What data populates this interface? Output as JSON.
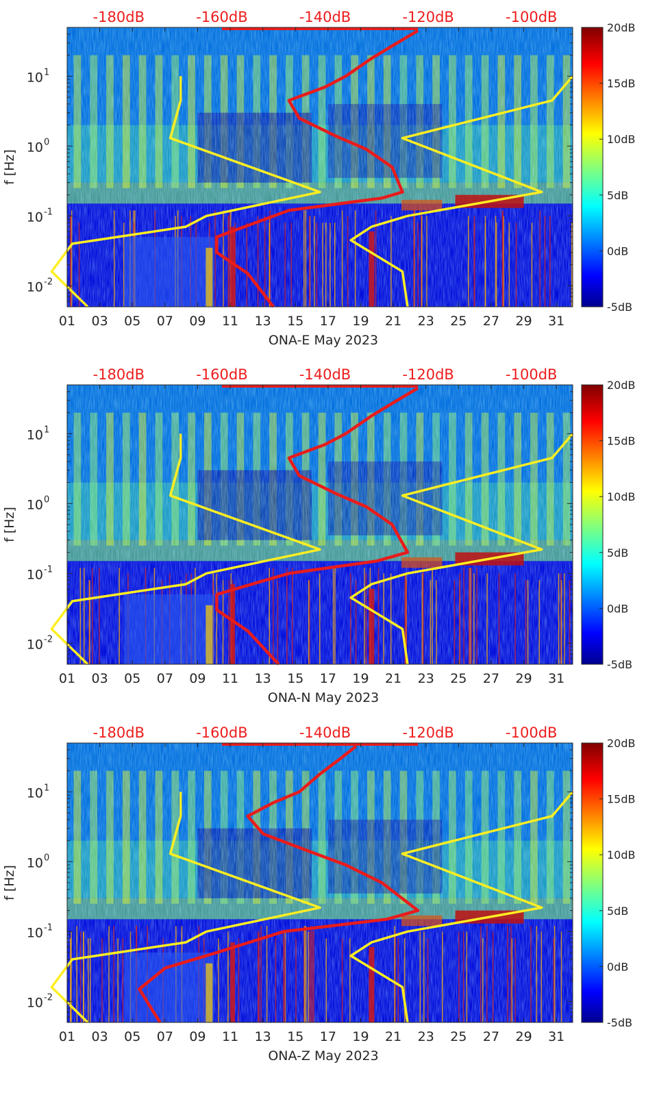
{
  "colors": {
    "background_colormap": "jet",
    "noise_model": "#ffee22",
    "median_psd": "#e81c1c",
    "top_scale_text": "#ee1c1c"
  },
  "top_scale_labels": [
    "-180dB",
    "-160dB",
    "-140dB",
    "-120dB",
    "-100dB"
  ],
  "colorbar_labels": [
    "20dB",
    "15dB",
    "10dB",
    "5dB",
    "0dB",
    "-5dB"
  ],
  "chart_data": [
    {
      "type": "heatmap",
      "title": "",
      "xlabel": "ONA-E May 2023",
      "ylabel": "f [Hz]",
      "x_tick_labels": [
        "01",
        "03",
        "05",
        "07",
        "09",
        "11",
        "13",
        "15",
        "17",
        "19",
        "21",
        "23",
        "25",
        "27",
        "29",
        "31"
      ],
      "y_tick_labels": [
        "10",
        "10",
        "10",
        "10"
      ],
      "y_tick_exponents": [
        "1",
        "0",
        "-1",
        "-2"
      ],
      "y_scale": "log",
      "ylim": [
        0.005,
        50
      ],
      "xlim": [
        1,
        32
      ],
      "colorbar": {
        "min": -5,
        "max": 20,
        "unit": "dB"
      },
      "top_axis": {
        "labels": [
          "-180dB",
          "-160dB",
          "-140dB",
          "-120dB",
          "-100dB"
        ],
        "range": [
          -190,
          -92
        ]
      },
      "series": [
        {
          "color": "#ffee22",
          "points": [
            [
              -168,
              10
            ],
            [
              -168,
              4.5
            ],
            [
              -170,
              1.3
            ],
            [
              -141,
              0.22
            ],
            [
              -163,
              0.1
            ],
            [
              -167,
              0.07
            ],
            [
              -189,
              0.04
            ],
            [
              -193,
              0.016
            ],
            [
              -186,
              0.005
            ]
          ]
        },
        {
          "color": "#ffee22",
          "points": [
            [
              -92,
              10
            ],
            [
              -96,
              4.5
            ],
            [
              -125,
              1.3
            ],
            [
              -98,
              0.22
            ],
            [
              -124,
              0.1
            ],
            [
              -131,
              0.07
            ],
            [
              -135,
              0.045
            ],
            [
              -125,
              0.016
            ],
            [
              -124,
              0.005
            ]
          ]
        },
        {
          "color": "#e81c1c",
          "points": [
            [
              -122,
              45
            ],
            [
              -126,
              30
            ],
            [
              -131,
              18
            ],
            [
              -136,
              10
            ],
            [
              -140,
              7
            ],
            [
              -147,
              4.5
            ],
            [
              -145,
              2.5
            ],
            [
              -138,
              1.4
            ],
            [
              -132,
              0.9
            ],
            [
              -127,
              0.5
            ],
            [
              -125,
              0.22
            ],
            [
              -129,
              0.18
            ],
            [
              -147,
              0.12
            ],
            [
              -161,
              0.05
            ],
            [
              -161,
              0.03
            ],
            [
              -155,
              0.015
            ],
            [
              -150,
              0.005
            ]
          ]
        }
      ]
    },
    {
      "type": "heatmap",
      "title": "",
      "xlabel": "ONA-N May 2023",
      "ylabel": "f [Hz]",
      "x_tick_labels": [
        "01",
        "03",
        "05",
        "07",
        "09",
        "11",
        "13",
        "15",
        "17",
        "19",
        "21",
        "23",
        "25",
        "27",
        "29",
        "31"
      ],
      "y_tick_labels": [
        "10",
        "10",
        "10",
        "10"
      ],
      "y_tick_exponents": [
        "1",
        "0",
        "-1",
        "-2"
      ],
      "y_scale": "log",
      "ylim": [
        0.005,
        50
      ],
      "xlim": [
        1,
        32
      ],
      "colorbar": {
        "min": -5,
        "max": 20,
        "unit": "dB"
      },
      "top_axis": {
        "labels": [
          "-180dB",
          "-160dB",
          "-140dB",
          "-120dB",
          "-100dB"
        ],
        "range": [
          -190,
          -92
        ]
      },
      "series": [
        {
          "color": "#ffee22",
          "points": [
            [
              -168,
              10
            ],
            [
              -168,
              4.5
            ],
            [
              -170,
              1.3
            ],
            [
              -141,
              0.22
            ],
            [
              -163,
              0.1
            ],
            [
              -167,
              0.07
            ],
            [
              -189,
              0.04
            ],
            [
              -193,
              0.016
            ],
            [
              -186,
              0.005
            ]
          ]
        },
        {
          "color": "#ffee22",
          "points": [
            [
              -92,
              10
            ],
            [
              -96,
              4.5
            ],
            [
              -125,
              1.3
            ],
            [
              -98,
              0.22
            ],
            [
              -124,
              0.1
            ],
            [
              -131,
              0.07
            ],
            [
              -135,
              0.045
            ],
            [
              -125,
              0.016
            ],
            [
              -124,
              0.005
            ]
          ]
        },
        {
          "color": "#e81c1c",
          "points": [
            [
              -122,
              45
            ],
            [
              -126,
              30
            ],
            [
              -131,
              18
            ],
            [
              -136,
              10
            ],
            [
              -140,
              7
            ],
            [
              -147,
              4.5
            ],
            [
              -145,
              2.5
            ],
            [
              -138,
              1.4
            ],
            [
              -132,
              0.9
            ],
            [
              -127,
              0.5
            ],
            [
              -124,
              0.2
            ],
            [
              -130,
              0.15
            ],
            [
              -147,
              0.1
            ],
            [
              -161,
              0.05
            ],
            [
              -161,
              0.03
            ],
            [
              -155,
              0.015
            ],
            [
              -149,
              0.005
            ]
          ]
        }
      ]
    },
    {
      "type": "heatmap",
      "title": "",
      "xlabel": "ONA-Z May 2023",
      "ylabel": "f [Hz]",
      "x_tick_labels": [
        "01",
        "03",
        "05",
        "07",
        "09",
        "11",
        "13",
        "15",
        "17",
        "19",
        "21",
        "23",
        "25",
        "27",
        "29",
        "31"
      ],
      "y_tick_labels": [
        "10",
        "10",
        "10",
        "10"
      ],
      "y_tick_exponents": [
        "1",
        "0",
        "-1",
        "-2"
      ],
      "y_scale": "log",
      "ylim": [
        0.005,
        50
      ],
      "xlim": [
        1,
        32
      ],
      "colorbar": {
        "min": -5,
        "max": 20,
        "unit": "dB"
      },
      "top_axis": {
        "labels": [
          "-180dB",
          "-160dB",
          "-140dB",
          "-120dB",
          "-100dB"
        ],
        "range": [
          -190,
          -92
        ]
      },
      "series": [
        {
          "color": "#ffee22",
          "points": [
            [
              -168,
              10
            ],
            [
              -168,
              4.5
            ],
            [
              -170,
              1.3
            ],
            [
              -141,
              0.22
            ],
            [
              -163,
              0.1
            ],
            [
              -167,
              0.07
            ],
            [
              -189,
              0.04
            ],
            [
              -193,
              0.016
            ],
            [
              -186,
              0.005
            ]
          ]
        },
        {
          "color": "#ffee22",
          "points": [
            [
              -92,
              10
            ],
            [
              -96,
              4.5
            ],
            [
              -125,
              1.3
            ],
            [
              -98,
              0.22
            ],
            [
              -124,
              0.1
            ],
            [
              -131,
              0.07
            ],
            [
              -135,
              0.045
            ],
            [
              -125,
              0.016
            ],
            [
              -124,
              0.005
            ]
          ]
        },
        {
          "color": "#e81c1c",
          "points": [
            [
              -134,
              45
            ],
            [
              -137,
              30
            ],
            [
              -141,
              18
            ],
            [
              -145,
              10
            ],
            [
              -150,
              7
            ],
            [
              -155,
              4.5
            ],
            [
              -152,
              2.5
            ],
            [
              -143,
              1.4
            ],
            [
              -136,
              0.9
            ],
            [
              -129,
              0.5
            ],
            [
              -122,
              0.2
            ],
            [
              -128,
              0.15
            ],
            [
              -148,
              0.1
            ],
            [
              -161,
              0.05
            ],
            [
              -171,
              0.03
            ],
            [
              -176,
              0.015
            ],
            [
              -172,
              0.005
            ]
          ]
        }
      ]
    }
  ]
}
